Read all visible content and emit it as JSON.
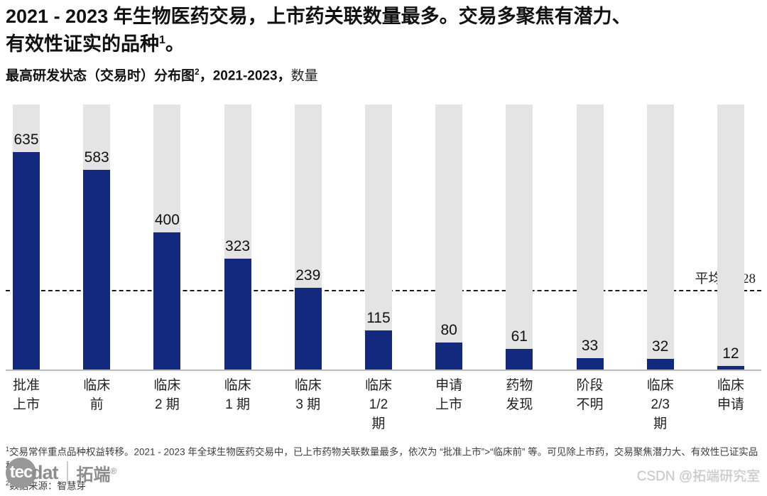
{
  "header": {
    "title_line1": "2021 - 2023 年生物医药交易，上市药关联数量最多。交易多聚焦有潜力、",
    "title_line2": "有效性证实的品种",
    "title_sup": "1",
    "title_end": "。"
  },
  "subtitle": {
    "part1": "最高研发状态（交易时）分布图",
    "sup": "2",
    "part2": "，2021-2023，",
    "unit": "数量"
  },
  "chart_data": {
    "type": "bar",
    "title": "最高研发状态（交易时）分布图，2021-2023，数量",
    "xlabel": "",
    "ylabel": "数量",
    "ylim": [
      0,
      772
    ],
    "grid": false,
    "legend": "none",
    "bar_color": "#12297e",
    "track_color": "#e4e4e4",
    "categories": [
      "批准\n上市",
      "临床前",
      "临床\n2 期",
      "临床\n1 期",
      "临床\n3 期",
      "临床\n1/2期",
      "申请\n上市",
      "药物\n发现",
      "阶段\n不明",
      "临床\n2/3 期",
      "临床\n申请"
    ],
    "values": [
      635,
      583,
      400,
      323,
      239,
      115,
      80,
      61,
      33,
      32,
      12
    ],
    "average": {
      "label": "平均：",
      "value": "228",
      "numeric": 228
    }
  },
  "footnotes": {
    "fn1_sup": "1",
    "fn1": "交易常伴重点品种权益转移。2021 - 2023 年全球生物医药交易中，已上市药物关联数量最多，依次为 “批准上市”>“临床前” 等。可见除上市药，交易聚焦潜力大、有效性已证实品种。",
    "fn2_sup": "2",
    "fn2": "数据来源：智慧芽"
  },
  "footer": {
    "logo_tec": "tec",
    "logo_dat": "dat",
    "logo_cn": "拓端",
    "logo_reg": "®",
    "watermark": "CSDN @拓端研究室"
  }
}
